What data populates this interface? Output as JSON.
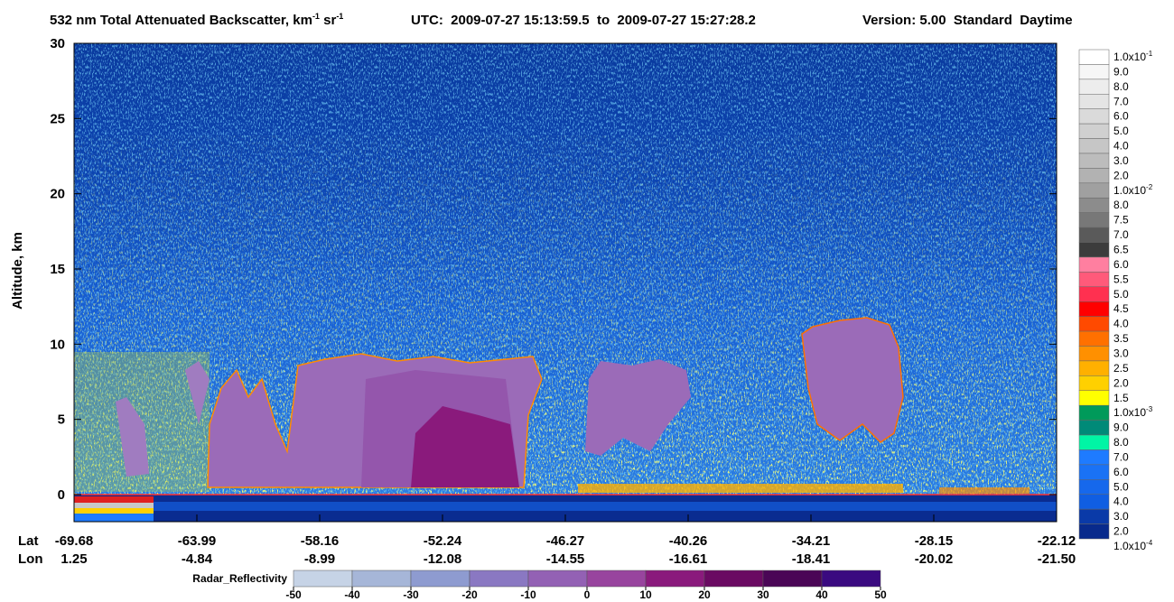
{
  "chart_data": {
    "type": "heatmap",
    "title": [
      "532 nm Total Attenuated Backscatter, km",
      "-1",
      " sr",
      "-1"
    ],
    "time_range": "UTC:  2009-07-27 15:13:59.5  to  2009-07-27 15:27:28.2",
    "version": "Version: 5.00  Standard  Daytime",
    "ylabel": "Altitude, km",
    "ylim": [
      -1.8,
      30
    ],
    "yticks": [
      0,
      5,
      10,
      15,
      20,
      25,
      30
    ],
    "lat_name": "Lat",
    "lat_labels": [
      "-69.68",
      "-63.99",
      "-58.16",
      "-52.24",
      "-46.27",
      "-40.26",
      "-34.21",
      "-28.15",
      "-22.12"
    ],
    "lon_name": "Lon",
    "lon_labels": [
      "1.25",
      "-4.84",
      "-8.99",
      "-12.08",
      "-14.55",
      "-16.61",
      "-18.41",
      "-20.02",
      "-21.50"
    ],
    "colorbar": {
      "labels": [
        {
          "text": "1.0x10",
          "sup": "-1"
        },
        "9.0",
        "8.0",
        "7.0",
        "6.0",
        "5.0",
        "4.0",
        "3.0",
        "2.0",
        {
          "text": "1.0x10",
          "sup": "-2"
        },
        "8.0",
        "7.5",
        "7.0",
        "6.5",
        "6.0",
        "5.5",
        "5.0",
        "4.5",
        "4.0",
        "3.5",
        "3.0",
        "2.5",
        "2.0",
        "1.5",
        {
          "text": "1.0x10",
          "sup": "-3"
        },
        "9.0",
        "8.0",
        "7.0",
        "6.0",
        "5.0",
        "4.0",
        "3.0",
        "2.0",
        {
          "text": "1.0x10",
          "sup": "-4"
        }
      ],
      "colors": [
        "#ffffff",
        "#f6f6f6",
        "#ededed",
        "#e4e4e4",
        "#dadada",
        "#d0d0d0",
        "#c6c6c6",
        "#bcbcbc",
        "#b2b2b2",
        "#a0a0a0",
        "#8c8c8c",
        "#787878",
        "#5a5a5a",
        "#3c3c3c",
        "#ff7fa0",
        "#ff5a7a",
        "#ff3050",
        "#ff0000",
        "#ff4a00",
        "#ff7000",
        "#ff9000",
        "#ffb000",
        "#ffd000",
        "#ffff00",
        "#009a5a",
        "#008a78",
        "#00f5a5",
        "#1e7bff",
        "#1a72f5",
        "#1668ec",
        "#105ee2",
        "#0a3aa8",
        "#082a8c"
      ]
    },
    "radar_colorbar": {
      "label": "Radar_Reflectivity",
      "ticks": [
        -50,
        -40,
        -30,
        -20,
        -10,
        0,
        10,
        20,
        30,
        40,
        50
      ],
      "colors": [
        "#c6d3e6",
        "#a6b6d8",
        "#8e9bd0",
        "#8a78c2",
        "#9361b4",
        "#98449e",
        "#8a1a7c",
        "#6a0a62",
        "#4a0656",
        "#3a0a80"
      ]
    }
  }
}
